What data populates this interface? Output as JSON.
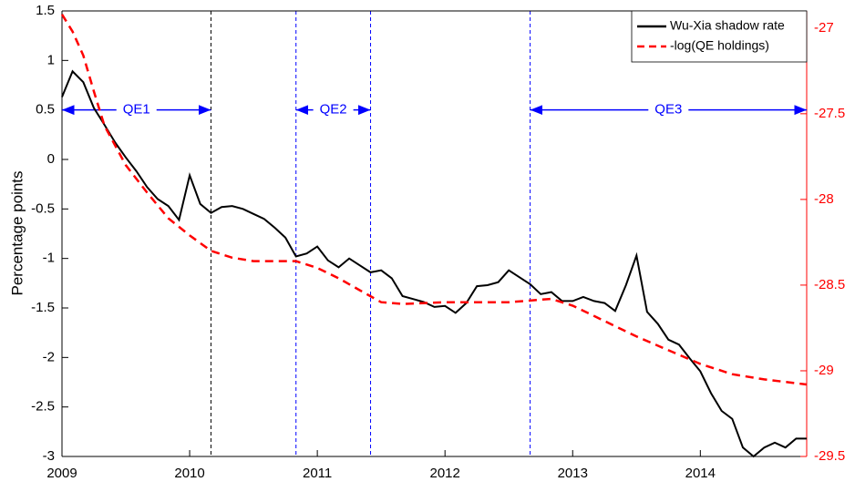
{
  "chart_data": {
    "type": "line",
    "ylabel": "Percentage points",
    "xlim": [
      2009,
      2014.833
    ],
    "xticks": [
      2009,
      2010,
      2011,
      2012,
      2013,
      2014
    ],
    "ylim": [
      -3,
      1.5
    ],
    "yticks": [
      -3,
      -2.5,
      -2,
      -1.5,
      -1,
      -0.5,
      0,
      0.5,
      1,
      1.5
    ],
    "y2lim": [
      -29.5,
      -26.9
    ],
    "y2ticks": [
      -29.5,
      -29,
      -28.5,
      -28,
      -27.5,
      -27
    ],
    "y2color": "#ff0000",
    "legend": "upper right",
    "series": [
      {
        "name": "Wu-Xia shadow rate",
        "color": "#000000",
        "dash": false,
        "x": [
          2009,
          2009.083,
          2009.167,
          2009.25,
          2009.333,
          2009.417,
          2009.5,
          2009.583,
          2009.667,
          2009.75,
          2009.833,
          2009.917,
          2010,
          2010.083,
          2010.167,
          2010.25,
          2010.333,
          2010.417,
          2010.5,
          2010.583,
          2010.667,
          2010.75,
          2010.833,
          2010.917,
          2011,
          2011.083,
          2011.167,
          2011.25,
          2011.333,
          2011.417,
          2011.5,
          2011.583,
          2011.667,
          2011.75,
          2011.833,
          2011.917,
          2012,
          2012.083,
          2012.167,
          2012.25,
          2012.333,
          2012.417,
          2012.5,
          2012.583,
          2012.667,
          2012.75,
          2012.833,
          2012.917,
          2013,
          2013.083,
          2013.167,
          2013.25,
          2013.333,
          2013.417,
          2013.5,
          2013.583,
          2013.667,
          2013.75,
          2013.833,
          2013.917,
          2014,
          2014.083,
          2014.167,
          2014.25,
          2014.333,
          2014.417,
          2014.5,
          2014.583,
          2014.667,
          2014.75,
          2014.833
        ],
        "values": [
          0.63,
          0.89,
          0.78,
          0.52,
          0.35,
          0.17,
          0.02,
          -0.12,
          -0.28,
          -0.4,
          -0.47,
          -0.61,
          -0.16,
          -0.45,
          -0.54,
          -0.48,
          -0.47,
          -0.5,
          -0.55,
          -0.6,
          -0.69,
          -0.79,
          -0.98,
          -0.95,
          -0.88,
          -1.02,
          -1.09,
          -1.0,
          -1.07,
          -1.14,
          -1.12,
          -1.2,
          -1.38,
          -1.41,
          -1.44,
          -1.49,
          -1.48,
          -1.55,
          -1.45,
          -1.28,
          -1.27,
          -1.24,
          -1.12,
          -1.19,
          -1.26,
          -1.36,
          -1.34,
          -1.43,
          -1.43,
          -1.39,
          -1.43,
          -1.45,
          -1.53,
          -1.27,
          -0.97,
          -1.54,
          -1.66,
          -1.82,
          -1.87,
          -2.01,
          -2.14,
          -2.36,
          -2.54,
          -2.62,
          -2.91,
          -3.0,
          -2.91,
          -2.86,
          -2.91,
          -2.82,
          -2.82
        ]
      },
      {
        "name": "-log(QE holdings)",
        "color": "#ff0000",
        "dash": true,
        "axis": "y2",
        "x": [
          2009,
          2009.083,
          2009.167,
          2009.25,
          2009.333,
          2009.5,
          2009.667,
          2009.833,
          2010,
          2010.167,
          2010.333,
          2010.5,
          2010.667,
          2010.833,
          2011,
          2011.167,
          2011.333,
          2011.5,
          2011.667,
          2012,
          2012.5,
          2012.833,
          2013,
          2013.25,
          2013.5,
          2013.75,
          2014,
          2014.25,
          2014.5,
          2014.833
        ],
        "values": [
          -26.92,
          -27.02,
          -27.16,
          -27.37,
          -27.57,
          -27.8,
          -27.96,
          -28.11,
          -28.21,
          -28.3,
          -28.34,
          -28.36,
          -28.36,
          -28.36,
          -28.4,
          -28.46,
          -28.53,
          -28.6,
          -28.61,
          -28.6,
          -28.6,
          -28.58,
          -28.62,
          -28.71,
          -28.8,
          -28.88,
          -28.96,
          -29.02,
          -29.05,
          -29.08
        ]
      }
    ],
    "vlines": [
      {
        "x": 2010.167,
        "color": "#000000"
      },
      {
        "x": 2010.833,
        "color": "#0000ff"
      },
      {
        "x": 2011.417,
        "color": "#0000ff"
      },
      {
        "x": 2012.667,
        "color": "#0000ff"
      }
    ],
    "annotations": [
      {
        "label": "QE1",
        "start": 2009,
        "end": 2010.167,
        "y": 0.5,
        "color": "#0000ff"
      },
      {
        "label": "QE2",
        "start": 2010.833,
        "end": 2011.417,
        "y": 0.5,
        "color": "#0000ff"
      },
      {
        "label": "QE3",
        "start": 2012.667,
        "end": 2014.833,
        "y": 0.5,
        "color": "#0000ff"
      }
    ]
  }
}
